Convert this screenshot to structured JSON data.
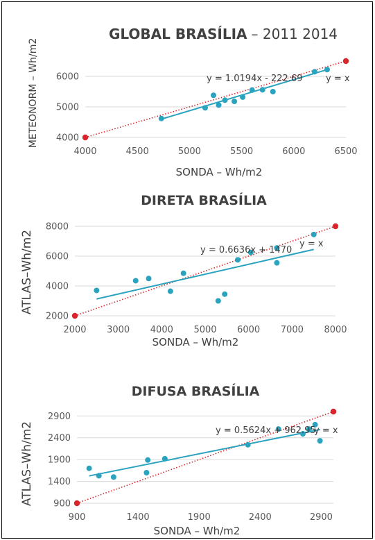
{
  "colors": {
    "points": "#2aa3bf",
    "trend": "#2aa3bf",
    "identity": "#d9262c",
    "grid": "#d9d9d9",
    "text": "#404040"
  },
  "chart_data": [
    {
      "type": "scatter",
      "title": "GLOBAL BRASÍLIA",
      "subtitle": "– 2011 2014",
      "xlabel": "SONDA – Wh/m2",
      "ylabel": "METEONORM – Wh/m2",
      "xlim": [
        4000,
        6500
      ],
      "ylim": [
        4000,
        6500
      ],
      "xticks": [
        "4000",
        "4500",
        "5000",
        "5500",
        "6000",
        "6500"
      ],
      "yticks": [
        "4000",
        "5000",
        "6000"
      ],
      "grid": true,
      "series": [
        {
          "x": [
            4730,
            5150,
            5230,
            5280,
            5340,
            5430,
            5510,
            5600,
            5700,
            5800,
            6200,
            6320
          ],
          "y": [
            4620,
            4970,
            5380,
            5060,
            5220,
            5180,
            5320,
            5550,
            5560,
            5500,
            6150,
            6220
          ]
        }
      ],
      "trendline": {
        "slope": 1.0194,
        "intercept": -222.69,
        "x_range": [
          4730,
          6320
        ],
        "label": "y = 1.0194x - 222.69"
      },
      "identity": {
        "from": [
          4000,
          4000
        ],
        "to": [
          6500,
          6500
        ],
        "label": "y = x"
      }
    },
    {
      "type": "scatter",
      "title": "DIRETA BRASÍLIA",
      "xlabel": "SONDA – Wh/m2",
      "ylabel": "ATLAS–Wh/m2",
      "xlim": [
        2000,
        8000
      ],
      "ylim": [
        2000,
        8000
      ],
      "xticks": [
        "2000",
        "3000",
        "4000",
        "5000",
        "6000",
        "7000",
        "8000"
      ],
      "yticks": [
        "2000",
        "4000",
        "6000",
        "8000"
      ],
      "grid": true,
      "series": [
        {
          "x": [
            2500,
            3400,
            3700,
            4200,
            4500,
            5300,
            5450,
            5750,
            6050,
            6650,
            6650,
            7500
          ],
          "y": [
            3700,
            4350,
            4500,
            3650,
            4850,
            3000,
            3450,
            5750,
            6250,
            6550,
            5550,
            7450
          ]
        }
      ],
      "trendline": {
        "slope": 0.6636,
        "intercept": 1470,
        "x_range": [
          2500,
          7500
        ],
        "label": "y = 0.6636x + 1470"
      },
      "identity": {
        "from": [
          2000,
          2000
        ],
        "to": [
          8000,
          8000
        ],
        "label": "y = x"
      }
    },
    {
      "type": "scatter",
      "title": "DIFUSA BRASÍLIA",
      "xlabel": "SONDA – Wh/m2",
      "ylabel": "ATLAS–Wh/m2",
      "xlim": [
        900,
        3000
      ],
      "ylim": [
        900,
        3000
      ],
      "xticks": [
        "900",
        "1400",
        "1900",
        "2400",
        "2900"
      ],
      "yticks": [
        "900",
        "1400",
        "1900",
        "2400",
        "2900"
      ],
      "grid": true,
      "series": [
        {
          "x": [
            1000,
            1080,
            1200,
            1470,
            1480,
            1620,
            2300,
            2550,
            2750,
            2800,
            2850,
            2890
          ],
          "y": [
            1700,
            1530,
            1500,
            1600,
            1890,
            1920,
            2240,
            2600,
            2490,
            2600,
            2700,
            2330
          ]
        }
      ],
      "trendline": {
        "slope": 0.5624,
        "intercept": 962.95,
        "x_range": [
          1000,
          2890
        ],
        "label": "y = 0.5624x + 962.95"
      },
      "identity": {
        "from": [
          900,
          900
        ],
        "to": [
          3000,
          3000
        ],
        "label": "y = x"
      }
    }
  ]
}
